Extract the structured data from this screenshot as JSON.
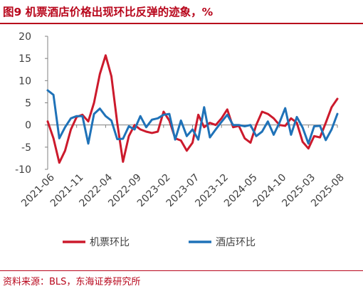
{
  "title": "图9  机票酒店价格出现环比反弹的迹象，%",
  "source": "资料来源：BLS，东海证券研究所",
  "colors": {
    "accent": "#b8071c",
    "series1": "#cc1a2c",
    "series2": "#1f72b8",
    "axis": "#808080",
    "text": "#404040"
  },
  "chart_data": {
    "type": "line",
    "title": "",
    "xlabel": "",
    "ylabel": "",
    "ylim": [
      -10,
      20
    ],
    "yticks": [
      -10,
      -5,
      0,
      5,
      10,
      15,
      20
    ],
    "x_tick_labels": [
      "2021-06",
      "2021-11",
      "2022-04",
      "2022-09",
      "2023-02",
      "2023-07",
      "2023-12",
      "2024-05",
      "2024-10",
      "2025-03",
      "2025-08"
    ],
    "x": [
      "2021-06",
      "2021-07",
      "2021-08",
      "2021-09",
      "2021-10",
      "2021-11",
      "2021-12",
      "2022-01",
      "2022-02",
      "2022-03",
      "2022-04",
      "2022-05",
      "2022-06",
      "2022-07",
      "2022-08",
      "2022-09",
      "2022-10",
      "2022-11",
      "2022-12",
      "2023-01",
      "2023-02",
      "2023-03",
      "2023-04",
      "2023-05",
      "2023-06",
      "2023-07",
      "2023-08",
      "2023-09",
      "2023-10",
      "2023-11",
      "2023-12",
      "2024-01",
      "2024-02",
      "2024-03",
      "2024-04",
      "2024-05",
      "2024-06",
      "2024-07",
      "2024-08",
      "2024-09",
      "2024-10",
      "2024-11",
      "2024-12",
      "2025-01",
      "2025-02",
      "2025-03",
      "2025-04",
      "2025-05",
      "2025-06",
      "2025-07",
      "2025-08"
    ],
    "legend_position": "bottom",
    "series": [
      {
        "name": "机票环比",
        "color": "#cc1a2c",
        "values": [
          0.8,
          -3.0,
          -8.5,
          -5.8,
          -1.0,
          1.8,
          2.3,
          0.8,
          5.0,
          11.5,
          15.7,
          11.0,
          0.5,
          -8.3,
          -2.5,
          0.0,
          -1.0,
          -1.5,
          -1.8,
          -1.5,
          3.0,
          1.0,
          -3.0,
          -3.5,
          -5.8,
          -4.0,
          2.3,
          -0.5,
          0.5,
          0.0,
          1.5,
          3.5,
          -0.5,
          -0.2,
          -3.0,
          -4.0,
          0.0,
          3.0,
          2.5,
          1.5,
          0.0,
          -0.2,
          1.5,
          0.5,
          -3.8,
          -5.3,
          -2.5,
          -2.8,
          0.5,
          4.0,
          5.9
        ]
      },
      {
        "name": "酒店环比",
        "color": "#1f72b8",
        "values": [
          7.8,
          6.8,
          -3.0,
          -0.5,
          1.5,
          2.0,
          2.0,
          -4.2,
          2.5,
          3.7,
          2.0,
          1.0,
          -3.2,
          -3.1,
          -0.3,
          -1.0,
          2.0,
          -0.5,
          1.2,
          1.5,
          2.3,
          2.5,
          -3.3,
          1.0,
          -2.5,
          -1.0,
          -3.3,
          4.0,
          -2.8,
          -1.0,
          0.7,
          2.3,
          0.0,
          0.0,
          -0.3,
          0.0,
          -2.5,
          -1.5,
          0.8,
          -2.2,
          0.5,
          3.8,
          -2.2,
          1.8,
          -0.6,
          -4.2,
          -0.3,
          -0.2,
          -3.4,
          -1.0,
          2.5
        ]
      }
    ]
  }
}
